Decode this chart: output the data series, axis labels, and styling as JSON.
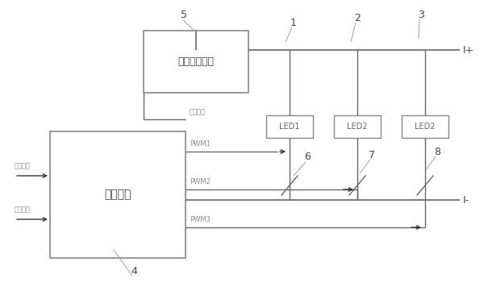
{
  "bg_color": "#ffffff",
  "line_color": "#666666",
  "text_color": "#888888",
  "dark_color": "#444444",
  "arrow_color": "#333333",
  "ctrl_chip_label": "控制芯片",
  "const_current_label": "恒流驱动模块",
  "led1_label": "LED1",
  "led2_label": "LED2",
  "led3_label": "LED2",
  "label_ctrl": "控制信号",
  "label_dimming": "调光信号",
  "label_color": "调色信号",
  "label_pwm1": "PWM1",
  "label_pwm2": "PWM2",
  "label_pwm3": "PWM3",
  "label_Iplus": "I+",
  "label_Iminus": "I-"
}
